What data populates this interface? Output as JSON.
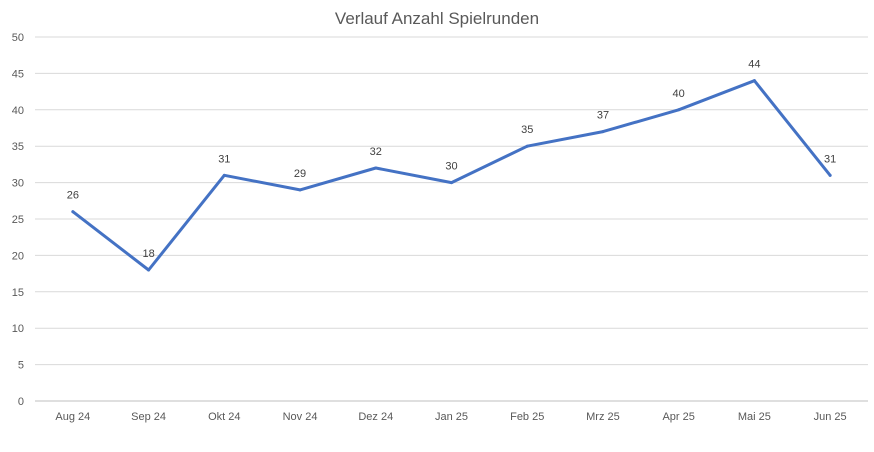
{
  "chart_data": {
    "type": "line",
    "title": "Verlauf Anzahl Spielrunden",
    "xlabel": "",
    "ylabel": "",
    "categories": [
      "Aug 24",
      "Sep 24",
      "Okt 24",
      "Nov 24",
      "Dez 24",
      "Jan 25",
      "Feb 25",
      "Mrz 25",
      "Apr 25",
      "Mai 25",
      "Jun 25"
    ],
    "series": [
      {
        "values": [
          26,
          18,
          31,
          29,
          32,
          30,
          35,
          37,
          40,
          44,
          31
        ],
        "color": "#4472c4"
      }
    ],
    "ylim": [
      0,
      50
    ],
    "yticks": [
      0,
      5,
      10,
      15,
      20,
      25,
      30,
      35,
      40,
      45,
      50
    ],
    "grid": true,
    "legend": "none",
    "data_labels": true
  }
}
